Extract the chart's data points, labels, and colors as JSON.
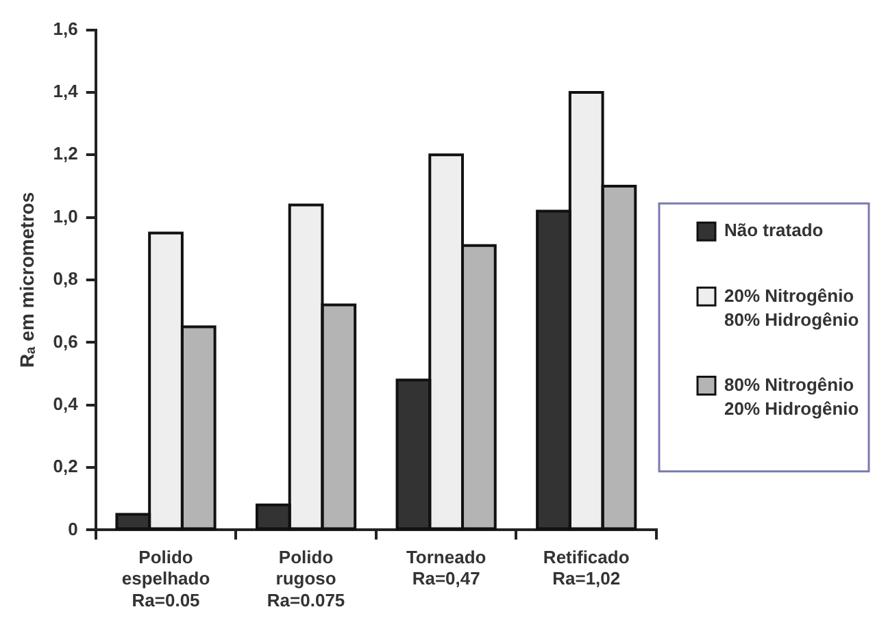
{
  "chart_data": {
    "type": "bar",
    "ylabel": "Rₐ em micrometros",
    "categories": [
      "Polido\nespelhado\nRa=0.05",
      "Polido\nrugoso\nRa=0.075",
      "Torneado\nRa=0,47",
      "Retificado\nRa=1,02"
    ],
    "series": [
      {
        "name": "Não tratado",
        "color": "#333333",
        "values": [
          0.05,
          0.08,
          0.48,
          1.02
        ]
      },
      {
        "name": "20% Nitrogênio\n80% Hidrogênio",
        "color": "#eeeeee",
        "values": [
          0.95,
          1.04,
          1.2,
          1.4
        ]
      },
      {
        "name": "80% Nitrogênio\n20% Hidrogênio",
        "color": "#b4b4b4",
        "values": [
          0.65,
          0.72,
          0.91,
          1.1
        ]
      }
    ],
    "ylim": [
      0,
      1.6
    ],
    "yticks": [
      0,
      {
        "value": 0.2,
        "label": "0,2"
      },
      {
        "value": 0.4,
        "label": "0,4"
      },
      {
        "value": 0.6,
        "label": "0,6"
      },
      {
        "value": 0.8,
        "label": "0,8"
      },
      {
        "value": 1.0,
        "label": "1,0"
      },
      {
        "value": 1.2,
        "label": "1,2"
      },
      {
        "value": 1.4,
        "label": "1,4"
      },
      {
        "value": 1.6,
        "label": "1,6"
      }
    ],
    "grid": false,
    "legend": "right"
  }
}
